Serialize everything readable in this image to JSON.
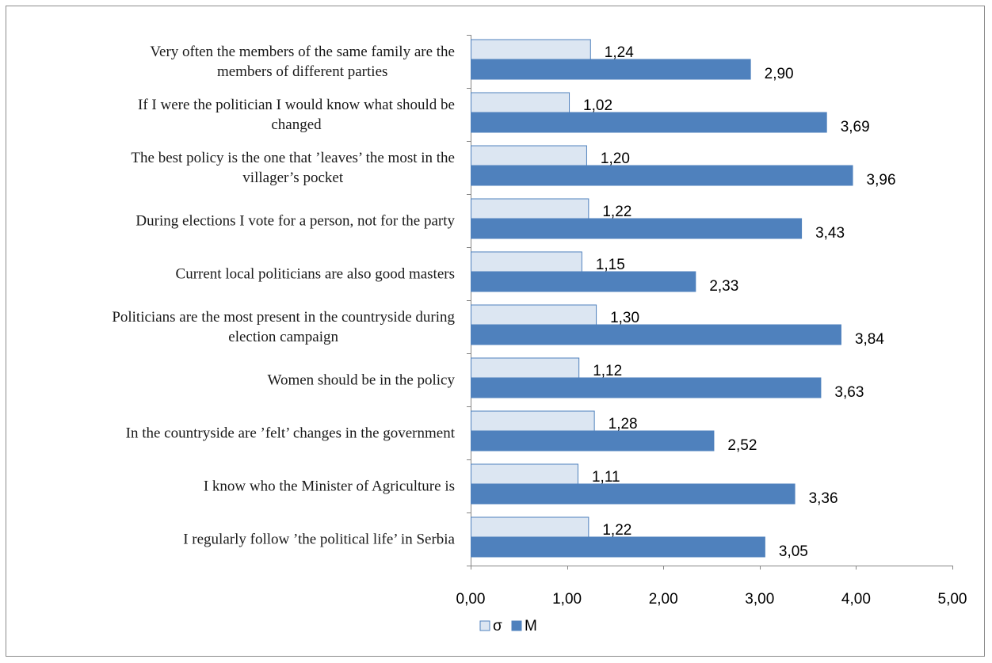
{
  "chart_data": {
    "type": "bar",
    "orientation": "horizontal",
    "categories": [
      [
        "Very often the members of the same family are the",
        "members of different parties"
      ],
      [
        "If  I were the politician I would know what should be",
        "changed"
      ],
      [
        "The best policy  is the one that ’leaves’ the most in the",
        "villager’s pocket"
      ],
      [
        "During elections I vote for a person, not for the party"
      ],
      [
        "Current local politicians are also good masters"
      ],
      [
        "Politicians are the most present in the countryside during",
        "election campaign"
      ],
      [
        "Women should be in the policy"
      ],
      [
        "In the countryside are ’felt’ changes in the government"
      ],
      [
        "I know who the Minister of Agriculture is"
      ],
      [
        "I regularly follow ’the political life’ in Serbia"
      ]
    ],
    "series": [
      {
        "name": "σ",
        "color": "#dce6f2",
        "stroke": "#4f81bd",
        "values": [
          1.24,
          1.02,
          1.2,
          1.22,
          1.15,
          1.3,
          1.12,
          1.28,
          1.11,
          1.22
        ],
        "labels": [
          "1,24",
          "1,02",
          "1,20",
          "1,22",
          "1,15",
          "1,30",
          "1,12",
          "1,28",
          "1,11",
          "1,22"
        ]
      },
      {
        "name": "M",
        "color": "#4f81bd",
        "stroke": "#4f81bd",
        "values": [
          2.9,
          3.69,
          3.96,
          3.43,
          2.33,
          3.84,
          3.63,
          2.52,
          3.36,
          3.05
        ],
        "labels": [
          "2,90",
          "3,69",
          "3,96",
          "3,43",
          "2,33",
          "3,84",
          "3,63",
          "2,52",
          "3,36",
          "3,05"
        ]
      }
    ],
    "xlim": [
      0,
      5
    ],
    "xticks": [
      0,
      1,
      2,
      3,
      4,
      5
    ],
    "xtick_labels": [
      "0,00",
      "1,00",
      "2,00",
      "3,00",
      "4,00",
      "5,00"
    ],
    "grid": false,
    "legend_position": "bottom",
    "axis_color": "#868686"
  }
}
